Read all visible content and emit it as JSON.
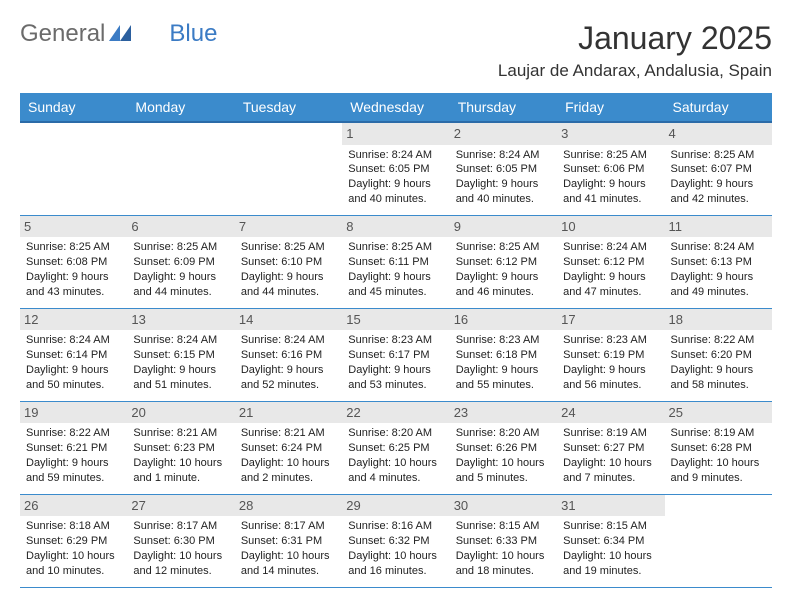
{
  "logo": {
    "part1": "General",
    "part2": "Blue"
  },
  "title": "January 2025",
  "location": "Laujar de Andarax, Andalusia, Spain",
  "colors": {
    "header_bg": "#3b8bcc",
    "header_text": "#ffffff",
    "row_border": "#3b8bcc",
    "daynum_bg": "#e8e8e8",
    "daynum_text": "#555555",
    "body_text": "#222222",
    "logo_gray": "#6b6b6b",
    "logo_blue": "#3b7bc4"
  },
  "weekdays": [
    "Sunday",
    "Monday",
    "Tuesday",
    "Wednesday",
    "Thursday",
    "Friday",
    "Saturday"
  ],
  "weeks": [
    [
      {
        "empty": true
      },
      {
        "empty": true
      },
      {
        "empty": true
      },
      {
        "day": "1",
        "sunrise": "Sunrise: 8:24 AM",
        "sunset": "Sunset: 6:05 PM",
        "dl1": "Daylight: 9 hours",
        "dl2": "and 40 minutes."
      },
      {
        "day": "2",
        "sunrise": "Sunrise: 8:24 AM",
        "sunset": "Sunset: 6:05 PM",
        "dl1": "Daylight: 9 hours",
        "dl2": "and 40 minutes."
      },
      {
        "day": "3",
        "sunrise": "Sunrise: 8:25 AM",
        "sunset": "Sunset: 6:06 PM",
        "dl1": "Daylight: 9 hours",
        "dl2": "and 41 minutes."
      },
      {
        "day": "4",
        "sunrise": "Sunrise: 8:25 AM",
        "sunset": "Sunset: 6:07 PM",
        "dl1": "Daylight: 9 hours",
        "dl2": "and 42 minutes."
      }
    ],
    [
      {
        "day": "5",
        "sunrise": "Sunrise: 8:25 AM",
        "sunset": "Sunset: 6:08 PM",
        "dl1": "Daylight: 9 hours",
        "dl2": "and 43 minutes."
      },
      {
        "day": "6",
        "sunrise": "Sunrise: 8:25 AM",
        "sunset": "Sunset: 6:09 PM",
        "dl1": "Daylight: 9 hours",
        "dl2": "and 44 minutes."
      },
      {
        "day": "7",
        "sunrise": "Sunrise: 8:25 AM",
        "sunset": "Sunset: 6:10 PM",
        "dl1": "Daylight: 9 hours",
        "dl2": "and 44 minutes."
      },
      {
        "day": "8",
        "sunrise": "Sunrise: 8:25 AM",
        "sunset": "Sunset: 6:11 PM",
        "dl1": "Daylight: 9 hours",
        "dl2": "and 45 minutes."
      },
      {
        "day": "9",
        "sunrise": "Sunrise: 8:25 AM",
        "sunset": "Sunset: 6:12 PM",
        "dl1": "Daylight: 9 hours",
        "dl2": "and 46 minutes."
      },
      {
        "day": "10",
        "sunrise": "Sunrise: 8:24 AM",
        "sunset": "Sunset: 6:12 PM",
        "dl1": "Daylight: 9 hours",
        "dl2": "and 47 minutes."
      },
      {
        "day": "11",
        "sunrise": "Sunrise: 8:24 AM",
        "sunset": "Sunset: 6:13 PM",
        "dl1": "Daylight: 9 hours",
        "dl2": "and 49 minutes."
      }
    ],
    [
      {
        "day": "12",
        "sunrise": "Sunrise: 8:24 AM",
        "sunset": "Sunset: 6:14 PM",
        "dl1": "Daylight: 9 hours",
        "dl2": "and 50 minutes."
      },
      {
        "day": "13",
        "sunrise": "Sunrise: 8:24 AM",
        "sunset": "Sunset: 6:15 PM",
        "dl1": "Daylight: 9 hours",
        "dl2": "and 51 minutes."
      },
      {
        "day": "14",
        "sunrise": "Sunrise: 8:24 AM",
        "sunset": "Sunset: 6:16 PM",
        "dl1": "Daylight: 9 hours",
        "dl2": "and 52 minutes."
      },
      {
        "day": "15",
        "sunrise": "Sunrise: 8:23 AM",
        "sunset": "Sunset: 6:17 PM",
        "dl1": "Daylight: 9 hours",
        "dl2": "and 53 minutes."
      },
      {
        "day": "16",
        "sunrise": "Sunrise: 8:23 AM",
        "sunset": "Sunset: 6:18 PM",
        "dl1": "Daylight: 9 hours",
        "dl2": "and 55 minutes."
      },
      {
        "day": "17",
        "sunrise": "Sunrise: 8:23 AM",
        "sunset": "Sunset: 6:19 PM",
        "dl1": "Daylight: 9 hours",
        "dl2": "and 56 minutes."
      },
      {
        "day": "18",
        "sunrise": "Sunrise: 8:22 AM",
        "sunset": "Sunset: 6:20 PM",
        "dl1": "Daylight: 9 hours",
        "dl2": "and 58 minutes."
      }
    ],
    [
      {
        "day": "19",
        "sunrise": "Sunrise: 8:22 AM",
        "sunset": "Sunset: 6:21 PM",
        "dl1": "Daylight: 9 hours",
        "dl2": "and 59 minutes."
      },
      {
        "day": "20",
        "sunrise": "Sunrise: 8:21 AM",
        "sunset": "Sunset: 6:23 PM",
        "dl1": "Daylight: 10 hours",
        "dl2": "and 1 minute."
      },
      {
        "day": "21",
        "sunrise": "Sunrise: 8:21 AM",
        "sunset": "Sunset: 6:24 PM",
        "dl1": "Daylight: 10 hours",
        "dl2": "and 2 minutes."
      },
      {
        "day": "22",
        "sunrise": "Sunrise: 8:20 AM",
        "sunset": "Sunset: 6:25 PM",
        "dl1": "Daylight: 10 hours",
        "dl2": "and 4 minutes."
      },
      {
        "day": "23",
        "sunrise": "Sunrise: 8:20 AM",
        "sunset": "Sunset: 6:26 PM",
        "dl1": "Daylight: 10 hours",
        "dl2": "and 5 minutes."
      },
      {
        "day": "24",
        "sunrise": "Sunrise: 8:19 AM",
        "sunset": "Sunset: 6:27 PM",
        "dl1": "Daylight: 10 hours",
        "dl2": "and 7 minutes."
      },
      {
        "day": "25",
        "sunrise": "Sunrise: 8:19 AM",
        "sunset": "Sunset: 6:28 PM",
        "dl1": "Daylight: 10 hours",
        "dl2": "and 9 minutes."
      }
    ],
    [
      {
        "day": "26",
        "sunrise": "Sunrise: 8:18 AM",
        "sunset": "Sunset: 6:29 PM",
        "dl1": "Daylight: 10 hours",
        "dl2": "and 10 minutes."
      },
      {
        "day": "27",
        "sunrise": "Sunrise: 8:17 AM",
        "sunset": "Sunset: 6:30 PM",
        "dl1": "Daylight: 10 hours",
        "dl2": "and 12 minutes."
      },
      {
        "day": "28",
        "sunrise": "Sunrise: 8:17 AM",
        "sunset": "Sunset: 6:31 PM",
        "dl1": "Daylight: 10 hours",
        "dl2": "and 14 minutes."
      },
      {
        "day": "29",
        "sunrise": "Sunrise: 8:16 AM",
        "sunset": "Sunset: 6:32 PM",
        "dl1": "Daylight: 10 hours",
        "dl2": "and 16 minutes."
      },
      {
        "day": "30",
        "sunrise": "Sunrise: 8:15 AM",
        "sunset": "Sunset: 6:33 PM",
        "dl1": "Daylight: 10 hours",
        "dl2": "and 18 minutes."
      },
      {
        "day": "31",
        "sunrise": "Sunrise: 8:15 AM",
        "sunset": "Sunset: 6:34 PM",
        "dl1": "Daylight: 10 hours",
        "dl2": "and 19 minutes."
      },
      {
        "empty": true
      }
    ]
  ]
}
